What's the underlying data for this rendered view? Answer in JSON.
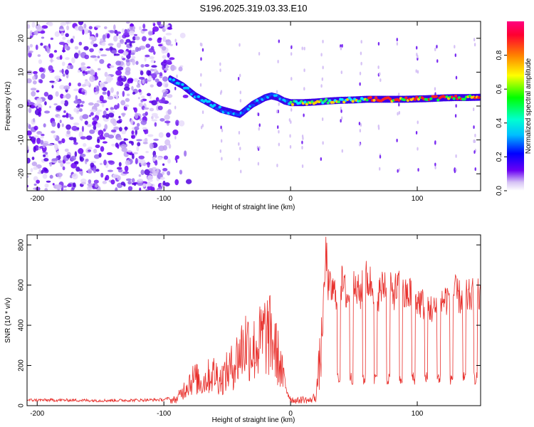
{
  "title": "S196.2025.319.03.33.E10",
  "chart_data": [
    {
      "type": "heatmap",
      "xlabel": "Height of straight line (km)",
      "ylabel": "Frequency (Hz)",
      "xlim": [
        -208,
        150
      ],
      "ylim": [
        -25,
        25
      ],
      "x_ticks": [
        -200,
        -100,
        0,
        100
      ],
      "y_ticks": [
        -20,
        -10,
        0,
        10,
        20
      ],
      "colorbar": {
        "label": "Normalized spectral amplitude",
        "range": [
          0,
          1
        ],
        "ticks": [
          "0.0",
          "0.2",
          "0.4",
          "0.6",
          "0.8"
        ],
        "tick_values": [
          0,
          0.2,
          0.4,
          0.6,
          0.8
        ]
      },
      "noise_region": {
        "x": [
          -208,
          -95
        ],
        "y": [
          -25,
          25
        ]
      },
      "ridge": {
        "x": [
          -95,
          -90,
          -85,
          -80,
          -75,
          -70,
          -65,
          -60,
          -55,
          -50,
          -45,
          -40,
          -35,
          -30,
          -25,
          -20,
          -15,
          -10,
          -5,
          0,
          10,
          20,
          30,
          40,
          50,
          60,
          70,
          80,
          90,
          100,
          110,
          120,
          130,
          140,
          150
        ],
        "y": [
          8,
          7,
          6,
          4.5,
          3,
          2,
          1,
          0,
          -1,
          -1.5,
          -2,
          -2.5,
          -1,
          0.5,
          1.5,
          2.5,
          3,
          2.5,
          1.5,
          1,
          1,
          1.2,
          1.5,
          1.7,
          1.8,
          2,
          2,
          2,
          2,
          2.1,
          2.2,
          2.4,
          2.5,
          2.5,
          2.6
        ]
      }
    },
    {
      "type": "line",
      "xlabel": "Height of straight line (km)",
      "ylabel": "SNR (10 * v/v)",
      "xlim": [
        -208,
        150
      ],
      "ylim": [
        0,
        850
      ],
      "x_ticks": [
        -200,
        -100,
        0,
        100
      ],
      "y_ticks": [
        0,
        200,
        400,
        600,
        800
      ],
      "series": [
        {
          "name": "SNR",
          "color": "#e8302c",
          "x": [
            -208,
            -180,
            -150,
            -120,
            -100,
            -90,
            -85,
            -80,
            -75,
            -70,
            -65,
            -60,
            -55,
            -50,
            -45,
            -40,
            -35,
            -30,
            -25,
            -20,
            -15,
            -10,
            -5,
            0,
            5,
            10,
            15,
            20,
            25,
            28,
            30,
            35,
            40,
            45,
            50,
            55,
            60,
            65,
            70,
            75,
            80,
            85,
            90,
            95,
            100,
            105,
            110,
            115,
            120,
            125,
            130,
            135,
            140,
            145,
            150
          ],
          "y": [
            20,
            20,
            18,
            20,
            22,
            40,
            90,
            150,
            170,
            140,
            180,
            200,
            160,
            210,
            250,
            330,
            400,
            340,
            380,
            450,
            420,
            300,
            150,
            40,
            30,
            40,
            30,
            60,
            400,
            850,
            650,
            620,
            680,
            600,
            640,
            620,
            700,
            660,
            620,
            680,
            620,
            650,
            600,
            620,
            580,
            560,
            540,
            520,
            580,
            600,
            620,
            590,
            600,
            610,
            600
          ]
        }
      ],
      "dip_positions": [
        38,
        48,
        58,
        67,
        77,
        87,
        97,
        107,
        117,
        127,
        137,
        146
      ],
      "dip_floor": 130
    }
  ]
}
